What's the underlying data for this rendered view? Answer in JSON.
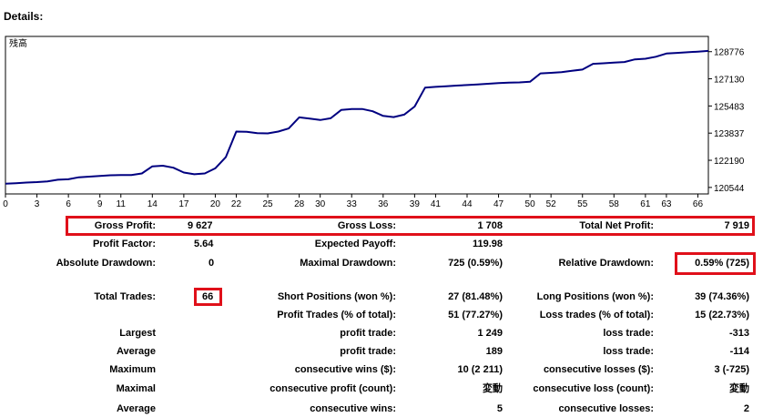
{
  "header": {
    "title": "Details:"
  },
  "chart_data": {
    "type": "line",
    "title": "",
    "legend": "残高",
    "xlabel": "",
    "ylabel": "",
    "x_ticks": [
      0,
      3,
      6,
      9,
      11,
      14,
      17,
      20,
      22,
      25,
      28,
      30,
      33,
      36,
      39,
      41,
      44,
      47,
      50,
      52,
      55,
      58,
      61,
      63,
      66
    ],
    "y_ticks": [
      120544,
      122190,
      123837,
      125483,
      127130,
      128776
    ],
    "xlim": [
      0,
      67
    ],
    "ylim": [
      120150,
      129700
    ],
    "grid": false,
    "series": [
      {
        "name": "残高",
        "color": "#000080",
        "x": [
          0,
          1,
          2,
          3,
          4,
          5,
          6,
          7,
          8,
          9,
          10,
          11,
          12,
          13,
          14,
          15,
          16,
          17,
          18,
          19,
          20,
          21,
          22,
          23,
          24,
          25,
          26,
          27,
          28,
          29,
          30,
          31,
          32,
          33,
          34,
          35,
          36,
          37,
          38,
          39,
          40,
          41,
          42,
          43,
          44,
          45,
          46,
          47,
          48,
          49,
          50,
          51,
          52,
          53,
          54,
          55,
          56,
          57,
          58,
          59,
          60,
          61,
          62,
          63,
          64,
          65,
          66,
          67
        ],
        "values": [
          120770,
          120800,
          120840,
          120870,
          120910,
          121010,
          121040,
          121160,
          121200,
          121240,
          121280,
          121290,
          121290,
          121390,
          121820,
          121860,
          121740,
          121450,
          121340,
          121390,
          121700,
          122380,
          123930,
          123920,
          123830,
          123820,
          123930,
          124120,
          124790,
          124720,
          124630,
          124740,
          125240,
          125300,
          125300,
          125160,
          124880,
          124810,
          124960,
          125450,
          126600,
          126640,
          126680,
          126720,
          126750,
          126790,
          126830,
          126870,
          126900,
          126910,
          126950,
          127460,
          127490,
          127530,
          127620,
          127690,
          128040,
          128070,
          128110,
          128150,
          128310,
          128350,
          128470,
          128660,
          128700,
          128740,
          128780,
          128820
        ]
      }
    ]
  },
  "table": {
    "gross_profit_label": "Gross Profit:",
    "gross_profit": "9 627",
    "gross_loss_label": "Gross Loss:",
    "gross_loss": "1 708",
    "total_net_profit_label": "Total Net Profit:",
    "total_net_profit": "7 919",
    "profit_factor_label": "Profit Factor:",
    "profit_factor": "5.64",
    "expected_payoff_label": "Expected Payoff:",
    "expected_payoff": "119.98",
    "absolute_drawdown_label": "Absolute Drawdown:",
    "absolute_drawdown": "0",
    "maximal_drawdown_label": "Maximal Drawdown:",
    "maximal_drawdown": "725 (0.59%)",
    "relative_drawdown_label": "Relative Drawdown:",
    "relative_drawdown": "0.59% (725)",
    "total_trades_label": "Total Trades:",
    "total_trades": "66",
    "short_positions_label": "Short Positions (won %):",
    "short_positions": "27 (81.48%)",
    "long_positions_label": "Long Positions (won %):",
    "long_positions": "39 (74.36%)",
    "profit_trades_label": "Profit Trades (% of total):",
    "profit_trades": "51 (77.27%)",
    "loss_trades_label": "Loss trades (% of total):",
    "loss_trades": "15 (22.73%)",
    "largest_label": "Largest",
    "largest_profit_label": "profit trade:",
    "largest_profit": "1 249",
    "largest_loss_label": "loss trade:",
    "largest_loss": "-313",
    "average_label": "Average",
    "average_profit_label": "profit trade:",
    "average_profit": "189",
    "average_loss_label": "loss trade:",
    "average_loss": "-114",
    "maximum_label": "Maximum",
    "max_consec_wins_label": "consecutive wins ($):",
    "max_consec_wins": "10 (2 211)",
    "max_consec_losses_label": "consecutive losses ($):",
    "max_consec_losses": "3 (-725)",
    "maximal_label": "Maximal",
    "maximal_consec_profit_label": "consecutive profit (count):",
    "maximal_consec_profit": "変動",
    "maximal_consec_loss_label": "consecutive loss (count):",
    "maximal_consec_loss": "変動",
    "average2_label": "Average",
    "avg_consec_wins_label": "consecutive wins:",
    "avg_consec_wins": "5",
    "avg_consec_losses_label": "consecutive losses:",
    "avg_consec_losses": "2"
  }
}
